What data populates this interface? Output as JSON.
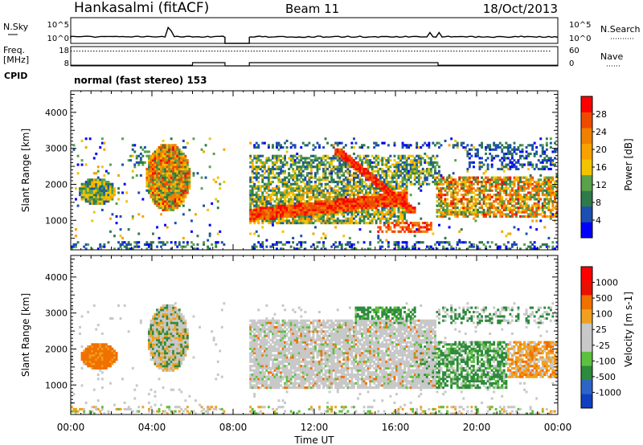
{
  "header": {
    "title": "Hankasalmi (fitACF)",
    "beam": "Beam 11",
    "date": "18/Oct/2013"
  },
  "panels": {
    "nsky_label": "N.Sky",
    "nsearch_label": "N.Search",
    "noise_ticks": [
      "10^5",
      "10^0"
    ],
    "freq_label": "Freq.",
    "freq_unit": "[MHz]",
    "freq_ticks": [
      "18",
      "8"
    ],
    "nave_label": "Nave",
    "nave_ticks": [
      "60",
      "0"
    ],
    "cpid_label": "CPID",
    "cpid_text": "normal (fast stereo) 153"
  },
  "colors": {
    "power": [
      "#0000ff",
      "#1c4fb0",
      "#2f7a4a",
      "#5aa14a",
      "#f2c400",
      "#f7a200",
      "#f08000",
      "#ef4b00",
      "#ff0000"
    ],
    "velocity": [
      "#1040c0",
      "#2d64c8",
      "#2e8a3c",
      "#5ec040",
      "#c8c8c8",
      "#c8c8c8",
      "#f0a020",
      "#f07000",
      "#e81000",
      "#ff0000"
    ]
  },
  "chart_data": [
    {
      "type": "heatmap",
      "name": "power",
      "ylabel": "Slant Range [km]",
      "ylim": [
        180,
        4600
      ],
      "yticks": [
        1000,
        2000,
        3000,
        4000
      ],
      "xlim": [
        0,
        24
      ],
      "colorbar": {
        "label": "Power [dB]",
        "range": [
          0,
          32
        ],
        "ticks": [
          "4",
          "8",
          "12",
          "16",
          "20",
          "24",
          "28"
        ]
      },
      "data_gap_hours": [
        7.6,
        8.8
      ]
    },
    {
      "type": "heatmap",
      "name": "velocity",
      "ylabel": "Slant Range [km]",
      "ylim": [
        180,
        4600
      ],
      "yticks": [
        1000,
        2000,
        3000,
        4000
      ],
      "xlim": [
        0,
        24
      ],
      "xlabel": "Time UT",
      "xticks": [
        "00:00",
        "04:00",
        "08:00",
        "12:00",
        "16:00",
        "20:00",
        "00:00"
      ],
      "colorbar": {
        "label": "Velocity [m s-1]",
        "ticks": [
          "1000",
          "500",
          "100",
          "25",
          "-25",
          "-100",
          "-500",
          "-1000"
        ]
      },
      "data_gap_hours": [
        7.6,
        8.8
      ]
    }
  ]
}
